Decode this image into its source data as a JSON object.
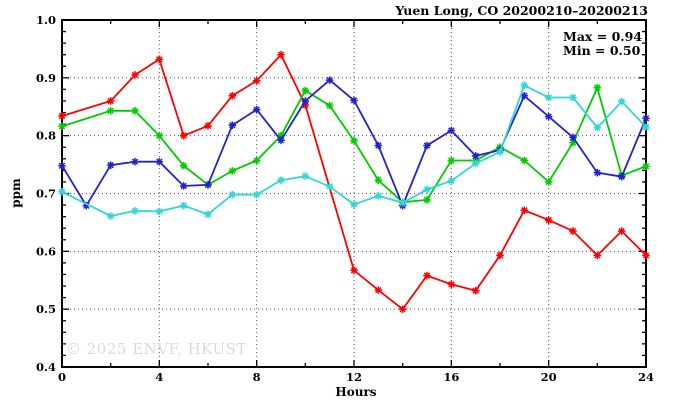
{
  "chart_data": {
    "type": "line",
    "title": "Yuen Long, CO 20200210–20200213",
    "xlabel": "Hours",
    "ylabel": "ppm",
    "xlim": [
      0,
      24
    ],
    "ylim": [
      0.4,
      1.0
    ],
    "x_major_ticks": [
      0,
      4,
      8,
      12,
      16,
      20,
      24
    ],
    "x_minor_ticks": [
      2,
      6,
      10,
      14,
      18,
      22
    ],
    "y_major_ticks": [
      0.4,
      0.5,
      0.6,
      0.7,
      0.8,
      0.9,
      1.0
    ],
    "y_minor_step": 0.02,
    "grid": "dotted",
    "legend_position": "top-right",
    "annotations": {
      "max_label": "Max = 0.94",
      "min_label": "Min = 0.50"
    },
    "watermark": "© 2025 ENVF, HKUST",
    "x": [
      0,
      1,
      2,
      3,
      4,
      5,
      6,
      7,
      8,
      9,
      10,
      11,
      12,
      13,
      14,
      15,
      16,
      17,
      18,
      19,
      20,
      21,
      22,
      23,
      24
    ],
    "series": [
      {
        "name": "series-red",
        "color_key": "red",
        "values": [
          0.834,
          null,
          0.86,
          0.905,
          0.932,
          0.8,
          0.817,
          0.869,
          0.895,
          0.94,
          0.853,
          null,
          0.567,
          0.533,
          0.5,
          0.558,
          0.543,
          0.532,
          0.593,
          0.671,
          0.654,
          0.635,
          0.593,
          0.635,
          0.593
        ]
      },
      {
        "name": "series-green",
        "color_key": "green",
        "values": [
          0.816,
          null,
          0.843,
          0.843,
          0.8,
          0.748,
          0.715,
          0.739,
          0.757,
          0.8,
          0.878,
          0.852,
          0.791,
          0.723,
          0.685,
          0.689,
          0.757,
          0.757,
          0.78,
          0.757,
          0.72,
          0.788,
          0.883,
          0.731,
          0.747
        ]
      },
      {
        "name": "series-blue",
        "color_key": "blue",
        "values": [
          0.748,
          0.679,
          0.749,
          0.755,
          0.755,
          0.713,
          0.715,
          0.818,
          0.845,
          0.792,
          0.86,
          0.896,
          0.861,
          0.783,
          0.679,
          0.783,
          0.809,
          0.765,
          0.775,
          0.869,
          0.833,
          0.797,
          0.736,
          0.729,
          0.83
        ]
      },
      {
        "name": "series-cyan",
        "color_key": "cyan",
        "values": [
          0.703,
          null,
          0.661,
          0.67,
          0.669,
          0.679,
          0.664,
          0.698,
          0.698,
          0.723,
          0.73,
          0.712,
          0.681,
          0.696,
          0.684,
          0.707,
          0.722,
          0.752,
          0.772,
          0.887,
          0.866,
          0.866,
          0.814,
          0.859,
          0.815
        ]
      }
    ]
  },
  "colors": {
    "red": "#ff0000",
    "green": "#00cc00",
    "blue": "#2222cc",
    "cyan": "#33d6d6",
    "frame": "#000000",
    "grid": "#555555",
    "watermark": "#dadada"
  }
}
